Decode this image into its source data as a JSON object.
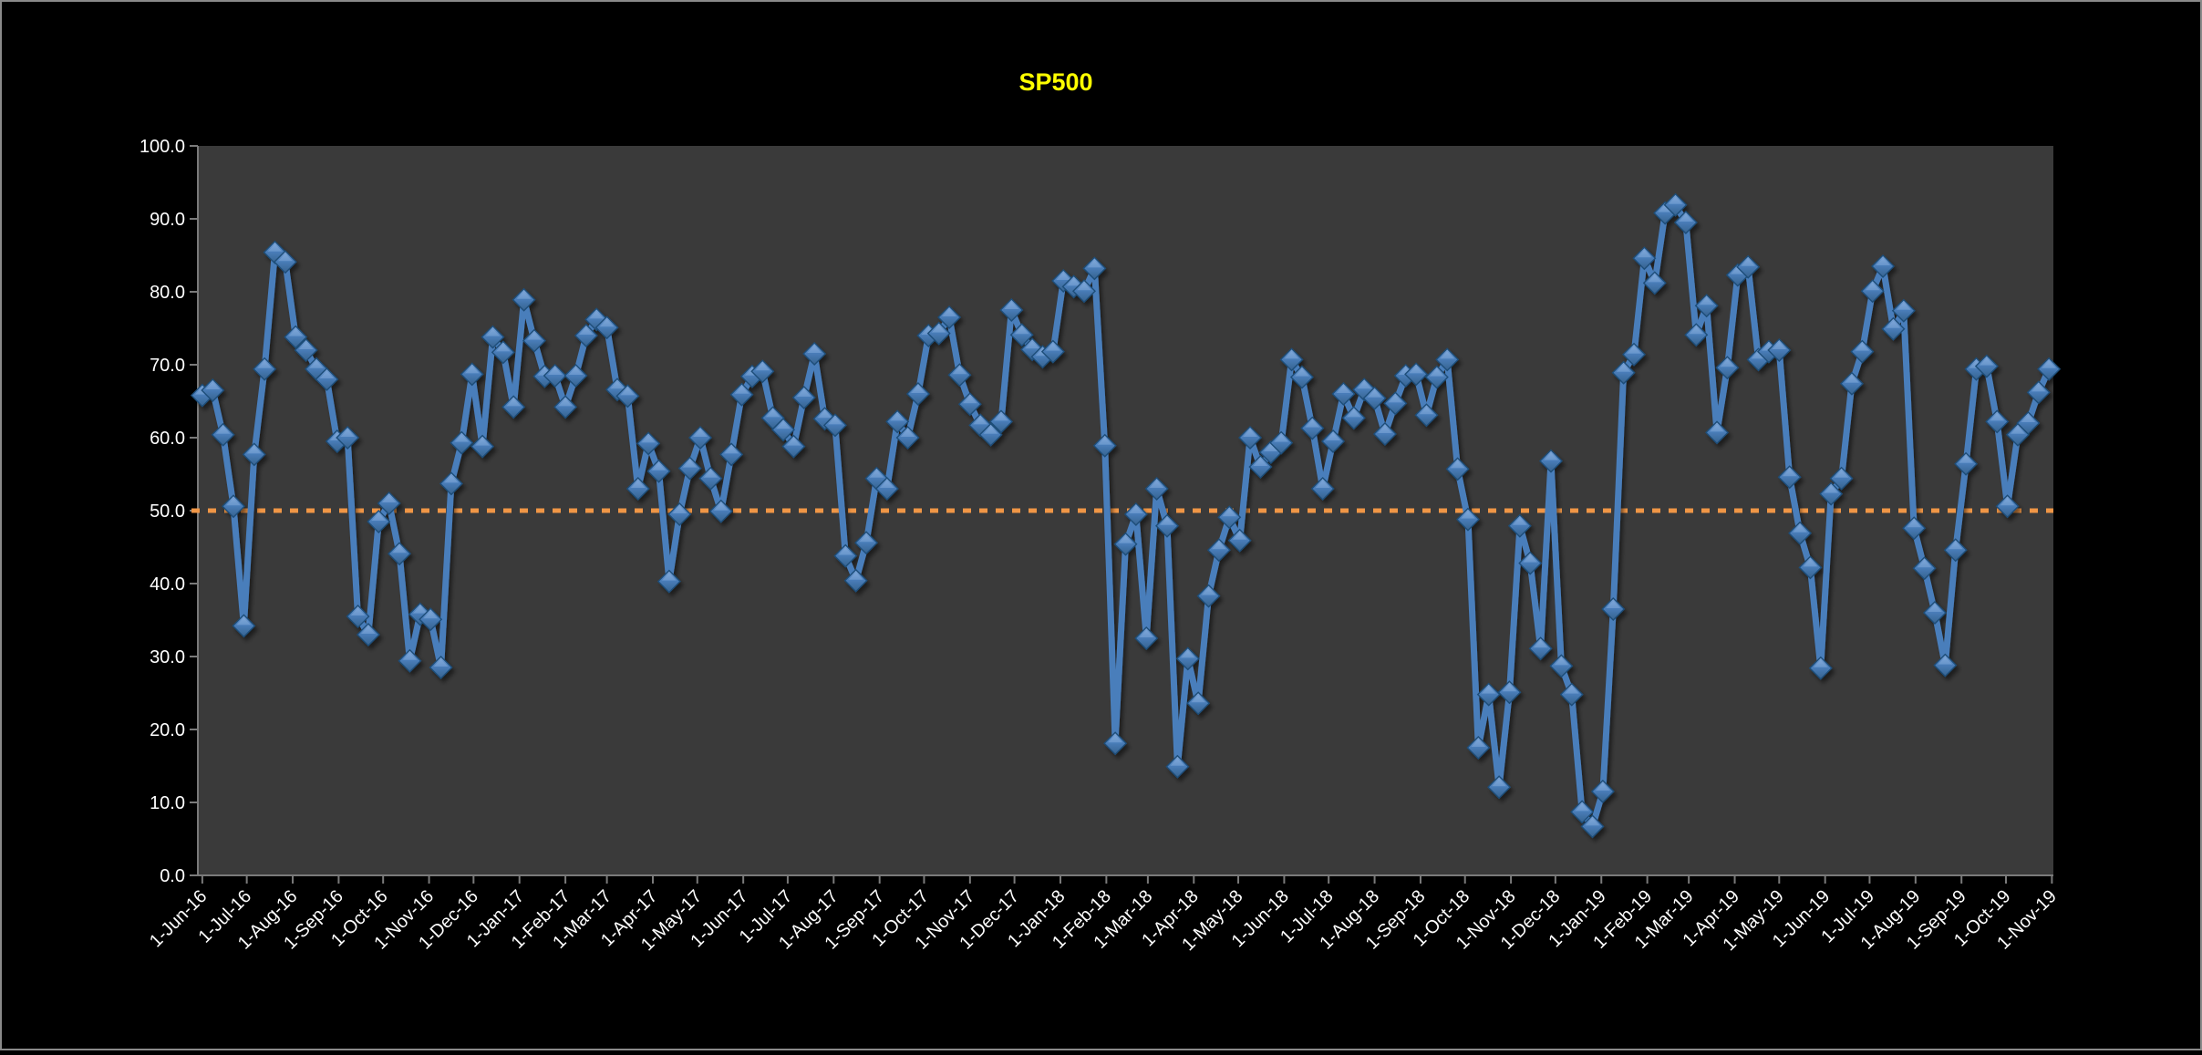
{
  "window": {
    "background_color": "#000000",
    "border_color": "#8a8a8a"
  },
  "chart_data": {
    "type": "line",
    "title": "SP500",
    "title_color": "#FFFF00",
    "plot_background_color": "#3A3A3A",
    "axis_color": "#7a7a7a",
    "tick_label_color": "#FFFFFF",
    "grid": false,
    "legend": "none",
    "ylim": [
      0,
      100
    ],
    "y_tick_labels": [
      "100.0",
      "90.0",
      "80.0",
      "70.0",
      "60.0",
      "50.0",
      "40.0",
      "30.0",
      "20.0",
      "10.0",
      "0.0"
    ],
    "x_tick_labels": [
      "1-Jun-16",
      "1-Jul-16",
      "1-Aug-16",
      "1-Sep-16",
      "1-Oct-16",
      "1-Nov-16",
      "1-Dec-16",
      "1-Jan-17",
      "1-Feb-17",
      "1-Mar-17",
      "1-Apr-17",
      "1-May-17",
      "1-Jun-17",
      "1-Jul-17",
      "1-Aug-17",
      "1-Sep-17",
      "1-Oct-17",
      "1-Nov-17",
      "1-Dec-17",
      "1-Jan-18",
      "1-Feb-18",
      "1-Mar-18",
      "1-Apr-18",
      "1-May-18",
      "1-Jun-18",
      "1-Jul-18",
      "1-Aug-18",
      "1-Sep-18",
      "1-Oct-18",
      "1-Nov-18",
      "1-Dec-18",
      "1-Jan-19",
      "1-Feb-19",
      "1-Mar-19",
      "1-Apr-19",
      "1-May-19",
      "1-Jun-19",
      "1-Jul-19",
      "1-Aug-19",
      "1-Sep-19",
      "1-Oct-19",
      "1-Nov-19"
    ],
    "x_start_date": "1-Jun-16",
    "point_interval_days": 7,
    "reference_line": {
      "value": 50.0,
      "color": "#F09646",
      "style": "dotted"
    },
    "series": [
      {
        "name": "SP500",
        "color": "#4A7EBB",
        "marker": "diamond",
        "marker_color_top": "#7EA6D8",
        "marker_color_bottom": "#36638F",
        "marker_edge_color": "#1F4E79",
        "values": [
          65.8,
          66.5,
          60.4,
          50.6,
          34.2,
          57.7,
          69.4,
          85.4,
          84.1,
          73.8,
          72.0,
          69.4,
          68.0,
          59.5,
          60.0,
          35.5,
          33.0,
          48.5,
          51.0,
          44.1,
          29.4,
          35.8,
          35.1,
          28.5,
          53.7,
          59.3,
          68.7,
          58.8,
          73.8,
          71.7,
          64.2,
          78.9,
          73.3,
          68.4,
          68.5,
          64.2,
          68.5,
          74.0,
          76.2,
          75.1,
          66.6,
          65.7,
          53.0,
          59.2,
          55.4,
          40.3,
          49.5,
          55.8,
          60.0,
          54.4,
          49.9,
          57.7,
          65.9,
          68.4,
          69.1,
          62.7,
          61.1,
          58.8,
          65.5,
          71.5,
          62.6,
          61.7,
          43.8,
          40.4,
          45.6,
          54.4,
          53.0,
          62.2,
          60.0,
          66.0,
          74.0,
          74.3,
          76.5,
          68.6,
          64.6,
          61.7,
          60.4,
          62.2,
          77.5,
          74.1,
          72.1,
          71.1,
          71.8,
          81.5,
          80.7,
          80.1,
          83.2,
          58.9,
          18.1,
          45.4,
          49.5,
          32.5,
          53.0,
          47.9,
          14.9,
          29.7,
          23.6,
          38.3,
          44.6,
          49.1,
          45.9,
          60.0,
          56.0,
          58.0,
          59.3,
          70.7,
          68.3,
          61.3,
          53.0,
          59.5,
          66.0,
          62.7,
          66.6,
          65.4,
          60.5,
          64.7,
          68.5,
          68.7,
          63.1,
          68.3,
          70.7,
          55.7,
          48.8,
          17.5,
          24.8,
          12.1,
          25.1,
          47.9,
          42.8,
          31.1,
          56.8,
          28.7,
          24.8,
          8.7,
          6.7,
          11.5,
          36.5,
          68.9,
          71.4,
          84.6,
          81.2,
          90.8,
          91.9,
          89.5,
          74.1,
          78.1,
          60.7,
          69.6,
          82.3,
          83.4,
          70.7,
          71.8,
          72.0,
          54.6,
          46.9,
          42.2,
          28.4,
          52.3,
          54.4,
          67.4,
          71.8,
          80.1,
          83.5,
          74.9,
          77.4,
          47.6,
          42.1,
          36.0,
          28.8,
          44.6,
          56.4,
          69.4,
          69.8,
          62.2,
          50.6,
          60.4,
          62.0,
          66.2,
          69.4
        ]
      }
    ]
  }
}
